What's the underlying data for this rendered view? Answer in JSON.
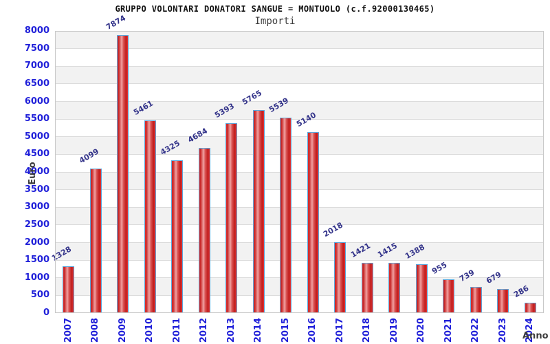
{
  "header": {
    "title": "GRUPPO VOLONTARI DONATORI SANGUE = MONTUOLO (c.f.92000130465)",
    "subtitle": "Importi"
  },
  "chart_data": {
    "type": "bar",
    "title": "GRUPPO VOLONTARI DONATORI SANGUE = MONTUOLO (c.f.92000130465)",
    "subtitle": "Importi",
    "xlabel": "Anno",
    "ylabel": "Euro",
    "categories": [
      "2007",
      "2008",
      "2009",
      "2010",
      "2011",
      "2012",
      "2013",
      "2014",
      "2015",
      "2016",
      "2017",
      "2018",
      "2019",
      "2020",
      "2021",
      "2022",
      "2023",
      "2024"
    ],
    "values": [
      1328,
      4099,
      7874,
      5461,
      4325,
      4684,
      5393,
      5765,
      5539,
      5140,
      2018,
      1421,
      1415,
      1388,
      955,
      739,
      679,
      286
    ],
    "ylim": [
      0,
      8000
    ],
    "ytick_step": 500,
    "grid": true,
    "legend": false,
    "band_pattern": "alternating horizontal stripes every 500, gray on top band",
    "colors": {
      "band": "#f2f2f2",
      "gridline": "#dcdcdc",
      "frame": "#c9c9c9",
      "axis_text": "#1f1fd9",
      "value_label": "#34348a",
      "axis_title": "#3c3c3c",
      "bar_border": "#5ca8dc",
      "bar_red_edge": "#c62323",
      "bar_red_center": "#f0a2a2"
    }
  }
}
